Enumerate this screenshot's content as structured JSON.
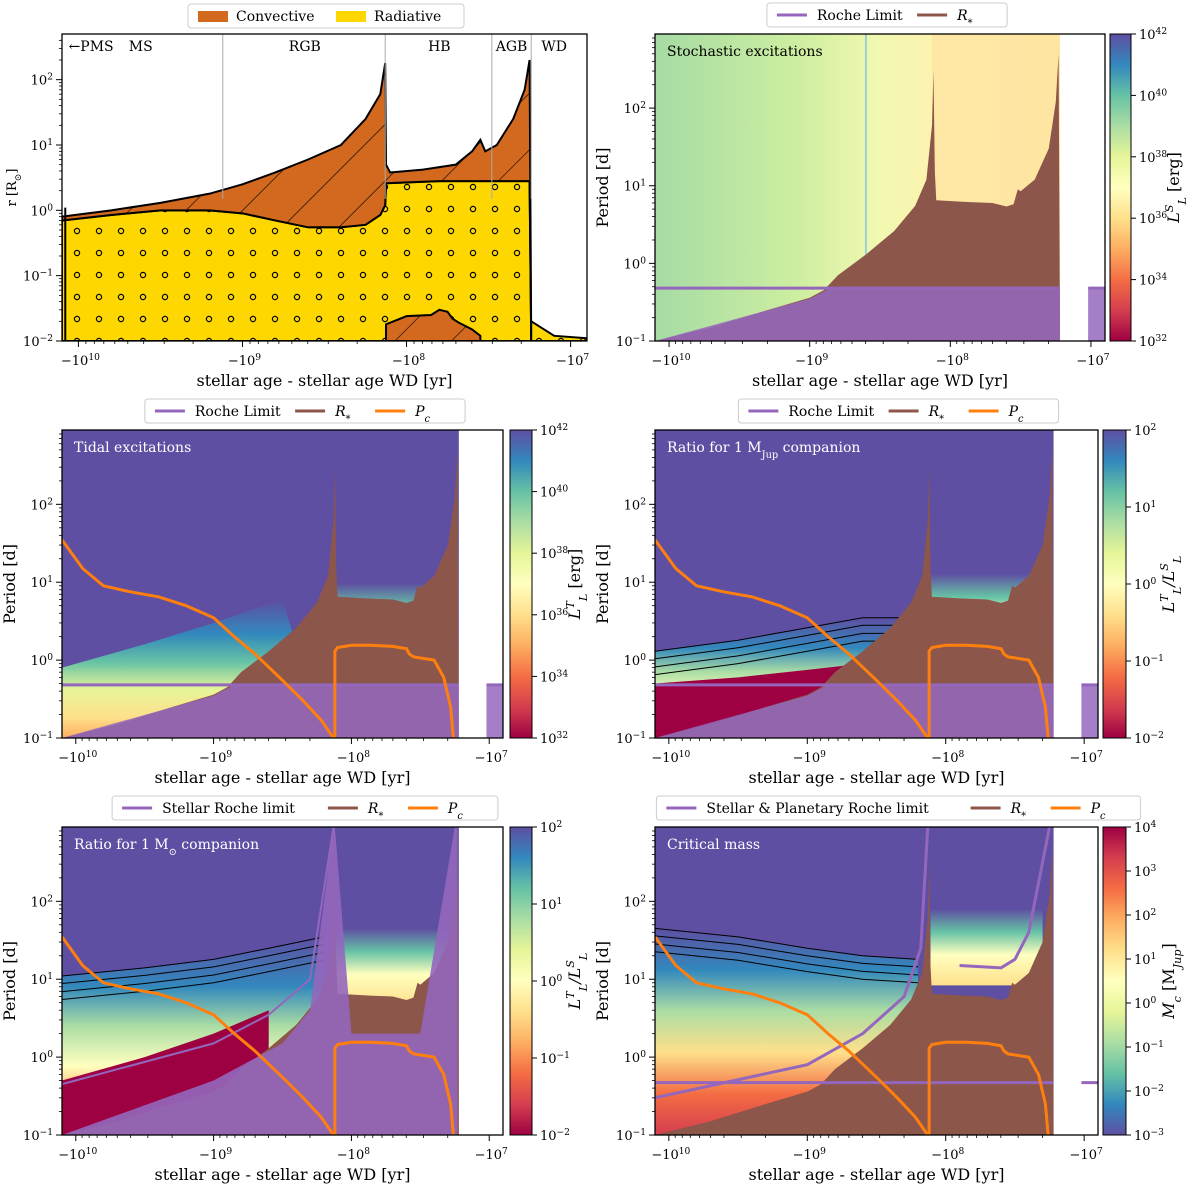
{
  "colors": {
    "convective": "#d2691e",
    "radiative": "#ffd700",
    "roche": "#9467bd",
    "rstar": "#8c564b",
    "pc": "#ff7f0e",
    "bg_dark": "#5e4fa2"
  },
  "chart_data": [
    {
      "id": "structure",
      "type": "area",
      "legend": [
        "Convective",
        "Radiative"
      ],
      "phases": [
        "←PMS",
        "MS",
        "RGB",
        "HB",
        "AGB",
        "WD"
      ],
      "xticks": [
        "−10",
        "−10",
        "−10",
        "−10"
      ],
      "xexp": [
        "10",
        "9",
        "8",
        "7"
      ],
      "yticks": [
        "10",
        "10",
        "10",
        "10",
        "10"
      ],
      "yexp": [
        "−2",
        "−1",
        "0",
        "1",
        "2"
      ],
      "xlabel": "stellar age - stellar age WD [yr]",
      "ylabel": "r [R",
      "ylabel_sub": "⊙",
      "ylabel_end": "]",
      "ylim": [
        0.01,
        500
      ]
    },
    {
      "id": "stochastic",
      "type": "heatmap",
      "annotation": "Stochastic excitations",
      "legend": [
        "Roche Limit",
        "R"
      ],
      "legend_sub": [
        "",
        "*"
      ],
      "yticks": [
        "10",
        "10",
        "10",
        "10"
      ],
      "yexp": [
        "−1",
        "0",
        "1",
        "2"
      ],
      "xticks": [
        "−10",
        "−10",
        "−10",
        "−10"
      ],
      "xexp": [
        "10",
        "9",
        "8",
        "7"
      ],
      "xlabel": "stellar age - stellar age WD [yr]",
      "ylabel": "Period [d]",
      "cbar_ticks": [
        "10",
        "10",
        "10",
        "10",
        "10",
        "10"
      ],
      "cbar_exp": [
        "32",
        "34",
        "36",
        "38",
        "40",
        "42"
      ],
      "cbar_label": "L",
      "cbar_label_sup": "S",
      "cbar_label_sub": "L",
      "cbar_label_unit": " [erg]",
      "ylim": [
        0.1,
        900
      ]
    },
    {
      "id": "tidal",
      "type": "heatmap",
      "annotation": "Tidal excitations",
      "legend": [
        "Roche Limit",
        "R",
        "P"
      ],
      "legend_sub": [
        "",
        "*",
        "c"
      ],
      "yticks": [
        "10",
        "10",
        "10",
        "10"
      ],
      "yexp": [
        "−1",
        "0",
        "1",
        "2"
      ],
      "xticks": [
        "−10",
        "−10",
        "−10",
        "−10"
      ],
      "xexp": [
        "10",
        "9",
        "8",
        "7"
      ],
      "xlabel": "stellar age - stellar age WD [yr]",
      "ylabel": "Period [d]",
      "cbar_ticks": [
        "10",
        "10",
        "10",
        "10",
        "10",
        "10"
      ],
      "cbar_exp": [
        "32",
        "34",
        "36",
        "38",
        "40",
        "42"
      ],
      "cbar_label": "L",
      "cbar_label_sup": "T",
      "cbar_label_sub": "L",
      "cbar_label_unit": " [erg]"
    },
    {
      "id": "ratio_jup",
      "type": "heatmap",
      "annotation": "Ratio for 1 M",
      "annotation_sub": "Jup",
      "annotation_end": " companion",
      "legend": [
        "Roche Limit",
        "R",
        "P"
      ],
      "legend_sub": [
        "",
        "*",
        "c"
      ],
      "yticks": [
        "10",
        "10",
        "10",
        "10"
      ],
      "yexp": [
        "−1",
        "0",
        "1",
        "2"
      ],
      "xticks": [
        "−10",
        "−10",
        "−10",
        "−10"
      ],
      "xexp": [
        "10",
        "9",
        "8",
        "7"
      ],
      "xlabel": "stellar age - stellar age WD [yr]",
      "ylabel": "Period [d]",
      "cbar_ticks": [
        "10",
        "10",
        "10",
        "10",
        "10"
      ],
      "cbar_exp": [
        "−2",
        "−1",
        "0",
        "1",
        "2"
      ],
      "cbar_label": "L",
      "cbar_label_sup": "T",
      "cbar_label_sub": "L",
      "cbar_label_mid": "/L",
      "cbar_label_sup2": "S",
      "cbar_label_sub2": "L"
    },
    {
      "id": "ratio_sun",
      "type": "heatmap",
      "annotation": "Ratio for 1 M",
      "annotation_sub": "⊙",
      "annotation_end": " companion",
      "legend": [
        "Stellar Roche limit",
        "R",
        "P"
      ],
      "legend_sub": [
        "",
        "*",
        "c"
      ],
      "yticks": [
        "10",
        "10",
        "10",
        "10"
      ],
      "yexp": [
        "−1",
        "0",
        "1",
        "2"
      ],
      "xticks": [
        "−10",
        "−10",
        "−10",
        "−10"
      ],
      "xexp": [
        "10",
        "9",
        "8",
        "7"
      ],
      "xlabel": "stellar age - stellar age WD [yr]",
      "ylabel": "Period [d]",
      "cbar_ticks": [
        "10",
        "10",
        "10",
        "10",
        "10"
      ],
      "cbar_exp": [
        "−2",
        "−1",
        "0",
        "1",
        "2"
      ],
      "cbar_label": "L",
      "cbar_label_sup": "T",
      "cbar_label_sub": "L",
      "cbar_label_mid": "/L",
      "cbar_label_sup2": "S",
      "cbar_label_sub2": "L"
    },
    {
      "id": "critical_mass",
      "type": "heatmap",
      "annotation": "Critical mass",
      "legend": [
        "Stellar & Planetary Roche limit",
        "R",
        "P"
      ],
      "legend_sub": [
        "",
        "*",
        "c"
      ],
      "yticks": [
        "10",
        "10",
        "10",
        "10"
      ],
      "yexp": [
        "−1",
        "0",
        "1",
        "2"
      ],
      "xticks": [
        "−10",
        "−10",
        "−10",
        "−10"
      ],
      "xexp": [
        "10",
        "9",
        "8",
        "7"
      ],
      "xlabel": "stellar age - stellar age WD [yr]",
      "ylabel": "Period [d]",
      "cbar_ticks": [
        "10",
        "10",
        "10",
        "10",
        "10",
        "10",
        "10",
        "10"
      ],
      "cbar_exp": [
        "−3",
        "−2",
        "−1",
        "0",
        "1",
        "2",
        "3",
        "4"
      ],
      "cbar_label": "M",
      "cbar_label_sub": "c",
      "cbar_label_unit": " [M",
      "cbar_label_sub2": "Jup",
      "cbar_label_end": "]"
    }
  ]
}
